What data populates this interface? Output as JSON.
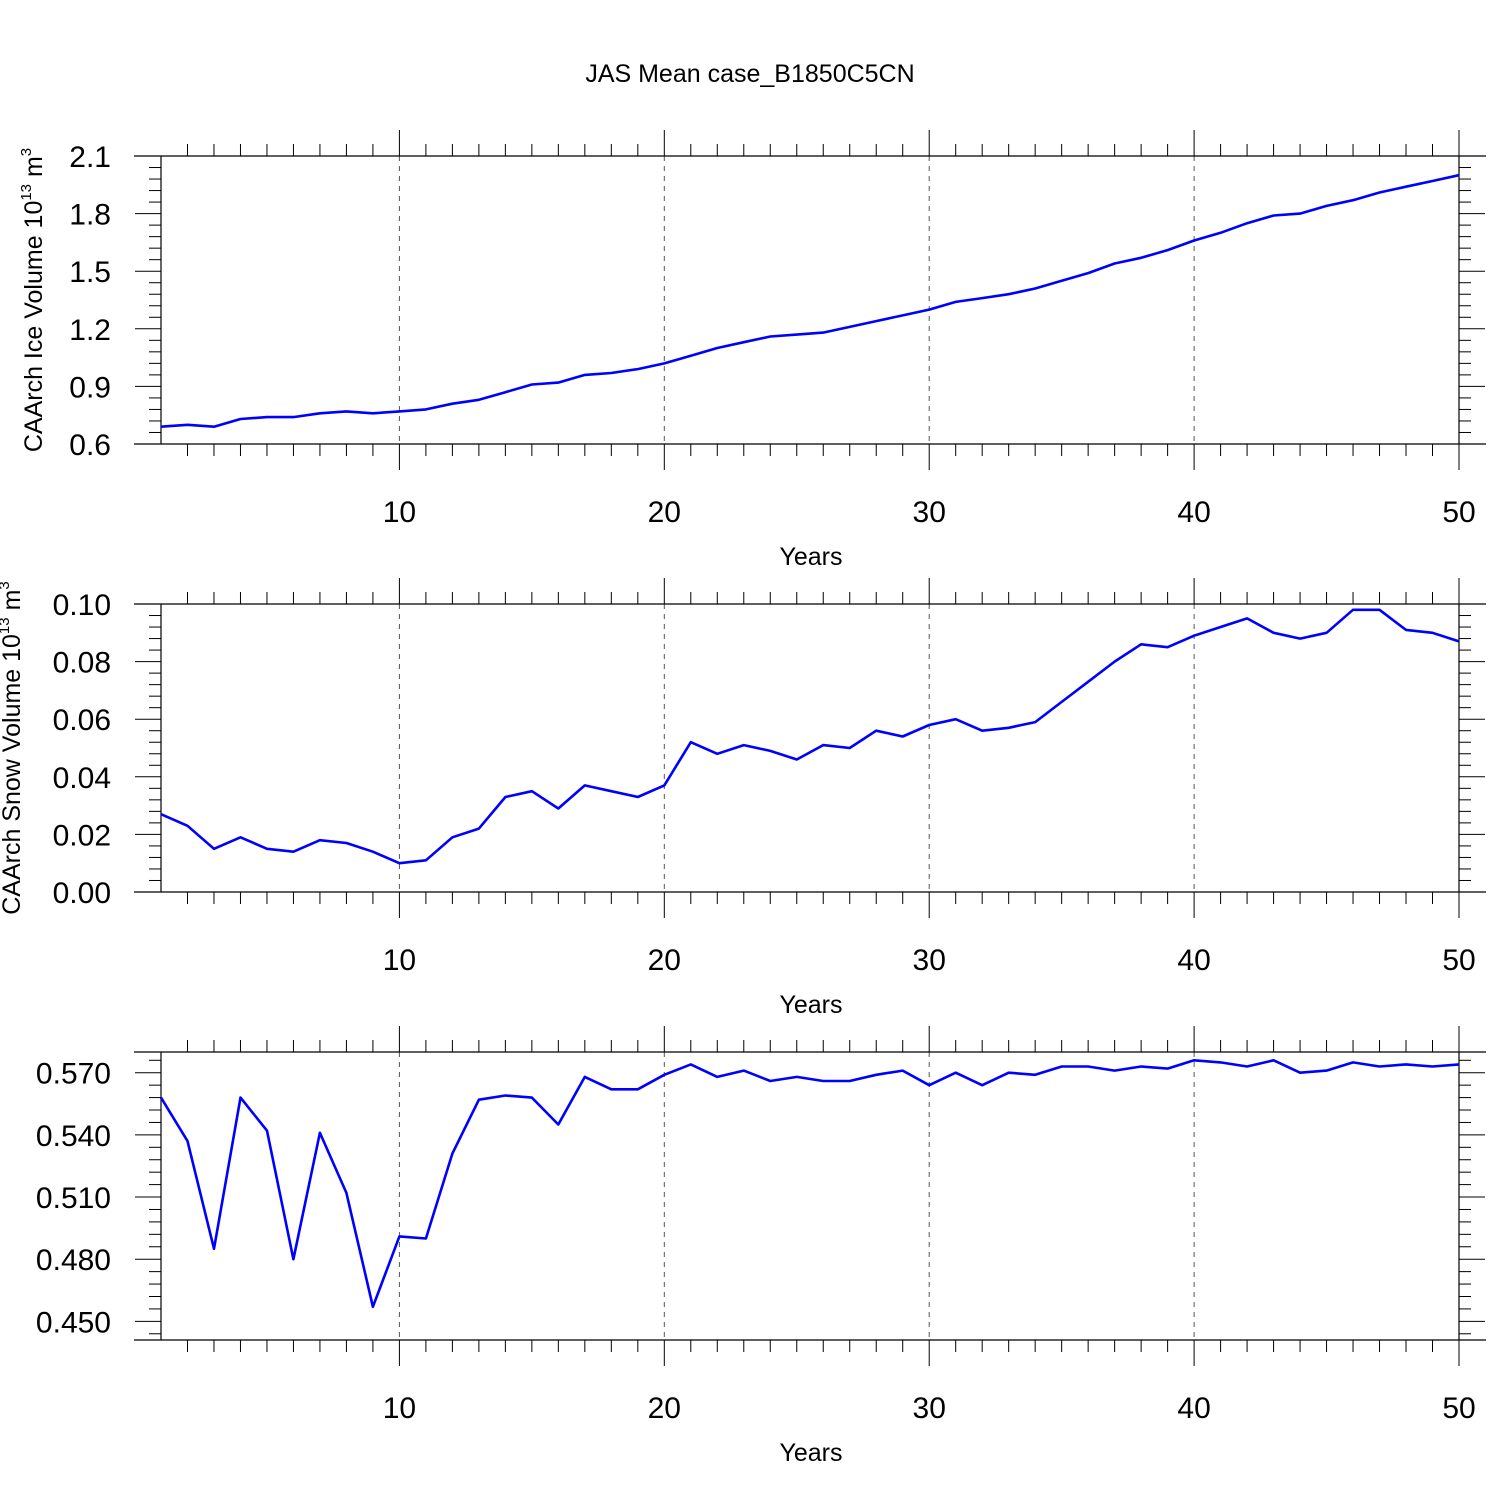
{
  "figure_title": "JAS Mean case_B1850C5CN",
  "chart_data": [
    {
      "type": "line",
      "title": "",
      "xlabel": "Years",
      "ylabel_main": "CAArch Ice Volume 10",
      "ylabel_sup": "13",
      "ylabel_unit": "m",
      "ylabel_unit_sup": "3",
      "xlim": [
        1,
        50
      ],
      "ylim": [
        0.6,
        2.1
      ],
      "xticks": [
        10,
        20,
        30,
        40,
        50
      ],
      "yticks": [
        0.6,
        0.9,
        1.2,
        1.5,
        1.8,
        2.1
      ],
      "ytick_labels": [
        "0.6",
        "0.9",
        "1.2",
        "1.5",
        "1.8",
        "2.1"
      ],
      "grid": "dashed vertical at major x ticks",
      "line_color": "#0000ff",
      "x": [
        1,
        2,
        3,
        4,
        5,
        6,
        7,
        8,
        9,
        10,
        11,
        12,
        13,
        14,
        15,
        16,
        17,
        18,
        19,
        20,
        21,
        22,
        23,
        24,
        25,
        26,
        27,
        28,
        29,
        30,
        31,
        32,
        33,
        34,
        35,
        36,
        37,
        38,
        39,
        40,
        41,
        42,
        43,
        44,
        45,
        46,
        47,
        48,
        49,
        50
      ],
      "values": [
        0.69,
        0.7,
        0.69,
        0.73,
        0.74,
        0.74,
        0.76,
        0.77,
        0.76,
        0.77,
        0.78,
        0.81,
        0.83,
        0.87,
        0.91,
        0.92,
        0.96,
        0.97,
        0.99,
        1.02,
        1.06,
        1.1,
        1.13,
        1.16,
        1.17,
        1.18,
        1.21,
        1.24,
        1.27,
        1.3,
        1.34,
        1.36,
        1.38,
        1.41,
        1.45,
        1.49,
        1.54,
        1.57,
        1.61,
        1.66,
        1.7,
        1.75,
        1.79,
        1.8,
        1.84,
        1.87,
        1.91,
        1.94,
        1.97,
        2.0
      ]
    },
    {
      "type": "line",
      "title": "",
      "xlabel": "Years",
      "ylabel_main": "CAArch Snow Volume 10",
      "ylabel_sup": "13",
      "ylabel_unit": "m",
      "ylabel_unit_sup": "3",
      "xlim": [
        1,
        50
      ],
      "ylim": [
        0.0,
        0.1
      ],
      "xticks": [
        10,
        20,
        30,
        40,
        50
      ],
      "yticks": [
        0.0,
        0.02,
        0.04,
        0.06,
        0.08,
        0.1
      ],
      "ytick_labels": [
        "0.00",
        "0.02",
        "0.04",
        "0.06",
        "0.08",
        "0.10"
      ],
      "grid": "dashed vertical at major x ticks",
      "line_color": "#0000ff",
      "x": [
        1,
        2,
        3,
        4,
        5,
        6,
        7,
        8,
        9,
        10,
        11,
        12,
        13,
        14,
        15,
        16,
        17,
        18,
        19,
        20,
        21,
        22,
        23,
        24,
        25,
        26,
        27,
        28,
        29,
        30,
        31,
        32,
        33,
        34,
        35,
        36,
        37,
        38,
        39,
        40,
        41,
        42,
        43,
        44,
        45,
        46,
        47,
        48,
        49,
        50
      ],
      "values": [
        0.027,
        0.023,
        0.015,
        0.019,
        0.015,
        0.014,
        0.018,
        0.017,
        0.014,
        0.01,
        0.011,
        0.019,
        0.022,
        0.033,
        0.035,
        0.029,
        0.037,
        0.035,
        0.033,
        0.037,
        0.052,
        0.048,
        0.051,
        0.049,
        0.046,
        0.051,
        0.05,
        0.056,
        0.054,
        0.058,
        0.06,
        0.056,
        0.057,
        0.059,
        0.066,
        0.073,
        0.08,
        0.086,
        0.085,
        0.089,
        0.092,
        0.095,
        0.09,
        0.088,
        0.09,
        0.098,
        0.098,
        0.091,
        0.09,
        0.087
      ]
    },
    {
      "type": "line",
      "title": "",
      "xlabel": "Years",
      "ylabel_main": "",
      "ylabel_sup": "",
      "ylabel_unit": "",
      "ylabel_unit_sup": "",
      "xlim": [
        1,
        50
      ],
      "ylim": [
        0.441,
        0.58
      ],
      "xticks": [
        10,
        20,
        30,
        40,
        50
      ],
      "yticks": [
        0.45,
        0.48,
        0.51,
        0.54,
        0.57
      ],
      "ytick_labels": [
        "0.450",
        "0.480",
        "0.510",
        "0.540",
        "0.570"
      ],
      "grid": "dashed vertical at major x ticks",
      "line_color": "#0000ff",
      "x": [
        1,
        2,
        3,
        4,
        5,
        6,
        7,
        8,
        9,
        10,
        11,
        12,
        13,
        14,
        15,
        16,
        17,
        18,
        19,
        20,
        21,
        22,
        23,
        24,
        25,
        26,
        27,
        28,
        29,
        30,
        31,
        32,
        33,
        34,
        35,
        36,
        37,
        38,
        39,
        40,
        41,
        42,
        43,
        44,
        45,
        46,
        47,
        48,
        49,
        50
      ],
      "values": [
        0.558,
        0.537,
        0.485,
        0.558,
        0.542,
        0.48,
        0.541,
        0.512,
        0.457,
        0.491,
        0.49,
        0.531,
        0.557,
        0.559,
        0.558,
        0.545,
        0.568,
        0.562,
        0.562,
        0.569,
        0.574,
        0.568,
        0.571,
        0.566,
        0.568,
        0.566,
        0.566,
        0.569,
        0.571,
        0.564,
        0.57,
        0.564,
        0.57,
        0.569,
        0.573,
        0.573,
        0.571,
        0.573,
        0.572,
        0.576,
        0.575,
        0.573,
        0.576,
        0.57,
        0.571,
        0.575,
        0.573,
        0.574,
        0.573,
        0.574
      ]
    }
  ]
}
